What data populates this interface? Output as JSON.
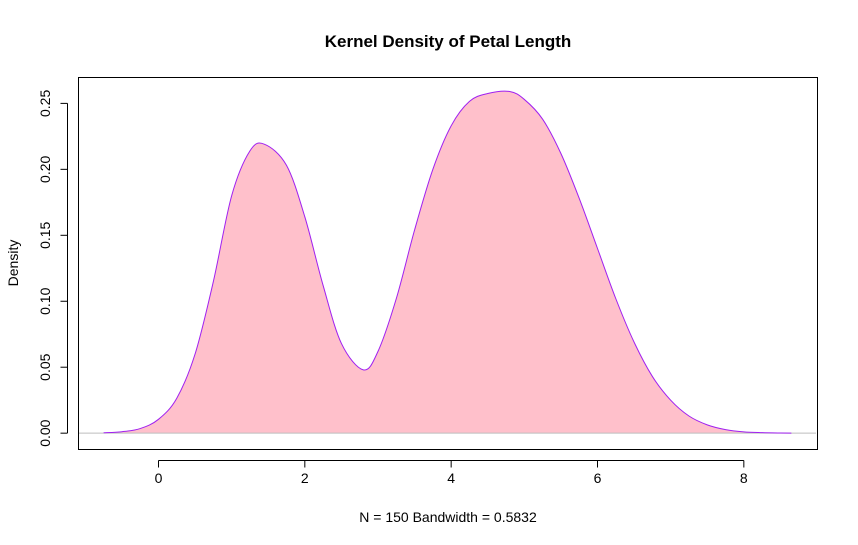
{
  "chart_data": {
    "type": "area",
    "title": "Kernel Density of Petal Length",
    "xlabel": "N = 150   Bandwidth = 0.5832",
    "ylabel": "Density",
    "xlim": [
      -1.1,
      9.0
    ],
    "ylim": [
      -0.012,
      0.27
    ],
    "x_ticks": [
      0,
      2,
      4,
      6,
      8
    ],
    "x_tick_labels": [
      "0",
      "2",
      "4",
      "6",
      "8"
    ],
    "y_ticks": [
      0.0,
      0.05,
      0.1,
      0.15,
      0.2,
      0.25
    ],
    "y_tick_labels": [
      "0.00",
      "0.05",
      "0.10",
      "0.15",
      "0.20",
      "0.25"
    ],
    "fill_color": "#ffc0cb",
    "line_color": "#a020f0",
    "baseline_color": "#bebebe",
    "grid": false,
    "legend": "none",
    "series": [
      {
        "x": [
          -0.75,
          -0.5,
          -0.25,
          0.0,
          0.25,
          0.5,
          0.75,
          1.0,
          1.25,
          1.45,
          1.75,
          2.0,
          2.25,
          2.5,
          2.8,
          3.0,
          3.25,
          3.5,
          3.75,
          4.0,
          4.25,
          4.5,
          4.8,
          5.0,
          5.25,
          5.5,
          5.75,
          6.0,
          6.25,
          6.5,
          6.75,
          7.0,
          7.25,
          7.5,
          7.75,
          8.0,
          8.25,
          8.5,
          8.65
        ],
        "y": [
          0.0003,
          0.0011,
          0.0035,
          0.0105,
          0.0265,
          0.06,
          0.115,
          0.18,
          0.214,
          0.219,
          0.203,
          0.164,
          0.112,
          0.068,
          0.048,
          0.062,
          0.102,
          0.154,
          0.2,
          0.233,
          0.2515,
          0.2575,
          0.259,
          0.253,
          0.238,
          0.212,
          0.178,
          0.14,
          0.102,
          0.069,
          0.043,
          0.025,
          0.013,
          0.0063,
          0.0027,
          0.001,
          0.0004,
          0.0001,
          0.0
        ]
      }
    ]
  }
}
